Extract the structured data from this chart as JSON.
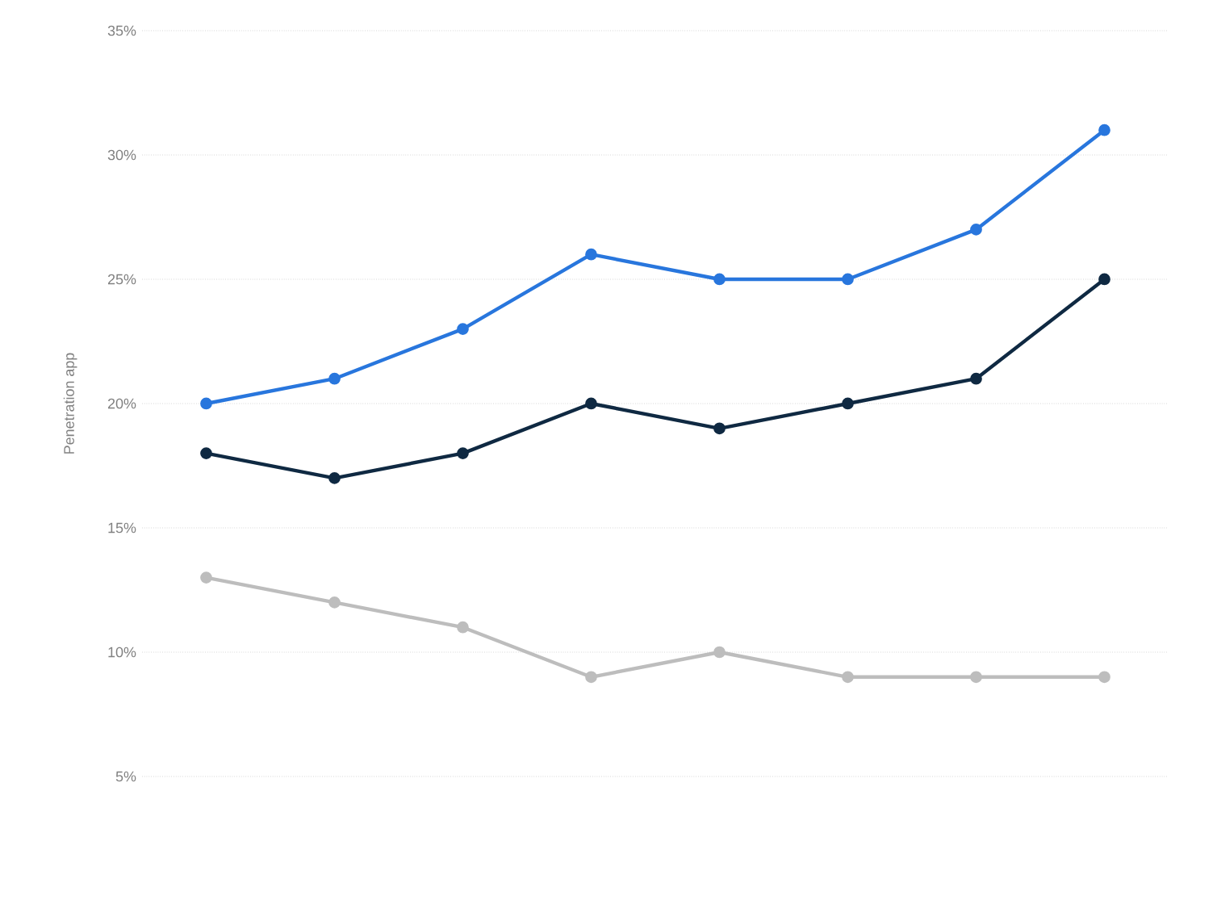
{
  "chart_data": {
    "type": "line",
    "ylabel": "Penetration app",
    "categories": [
      null,
      null,
      null,
      null,
      null,
      null,
      null,
      null
    ],
    "series": [
      {
        "color": "#2876dd",
        "values": [
          20,
          21,
          23,
          26,
          25,
          25,
          27,
          31
        ]
      },
      {
        "color": "#0f2942",
        "values": [
          18,
          17,
          18,
          20,
          19,
          20,
          21,
          25
        ]
      },
      {
        "color": "#bdbdbd",
        "values": [
          13,
          12,
          11,
          9,
          10,
          9,
          9,
          9
        ]
      }
    ],
    "ylim": [
      5,
      35
    ],
    "yticks": [
      {
        "value": 5,
        "label": "5%"
      },
      {
        "value": 10,
        "label": "10%"
      },
      {
        "value": 15,
        "label": "15%"
      },
      {
        "value": 20,
        "label": "20%"
      },
      {
        "value": 25,
        "label": "25%"
      },
      {
        "value": 30,
        "label": "30%"
      },
      {
        "value": 35,
        "label": "35%"
      }
    ],
    "grid": "y",
    "marker": "circle",
    "line_style": "solid"
  }
}
